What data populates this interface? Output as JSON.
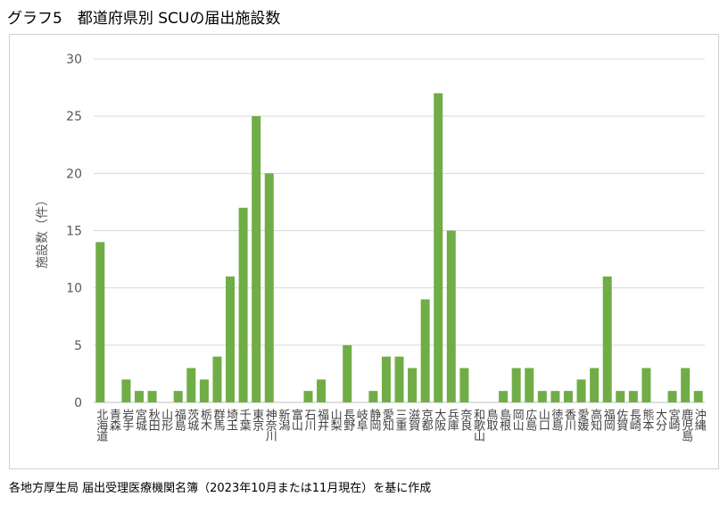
{
  "chart_data": {
    "type": "bar",
    "title": "グラフ5　都道府県別 SCUの届出施設数",
    "xlabel": "",
    "ylabel": "施設数（件）",
    "ylim": [
      0,
      30
    ],
    "yticks": [
      0,
      5,
      10,
      15,
      20,
      25,
      30
    ],
    "grid": true,
    "bar_color": "#70ad47",
    "categories": [
      "北海道",
      "青森",
      "岩手",
      "宮城",
      "秋田",
      "山形",
      "福島",
      "茨城",
      "栃木",
      "群馬",
      "埼玉",
      "千葉",
      "東京",
      "神奈川",
      "新潟",
      "富山",
      "石川",
      "福井",
      "山梨",
      "長野",
      "岐阜",
      "静岡",
      "愛知",
      "三重",
      "滋賀",
      "京都",
      "大阪",
      "兵庫",
      "奈良",
      "和歌山",
      "鳥取",
      "島根",
      "岡山",
      "広島",
      "山口",
      "徳島",
      "香川",
      "愛媛",
      "高知",
      "福岡",
      "佐賀",
      "長崎",
      "熊本",
      "大分",
      "宮崎",
      "鹿児島",
      "沖縄"
    ],
    "values": [
      14,
      0,
      2,
      1,
      1,
      0,
      1,
      3,
      2,
      4,
      11,
      17,
      25,
      20,
      0,
      0,
      1,
      2,
      0,
      5,
      0,
      1,
      4,
      4,
      3,
      9,
      27,
      15,
      3,
      0,
      0,
      1,
      3,
      3,
      1,
      1,
      1,
      2,
      3,
      11,
      1,
      1,
      3,
      0,
      1,
      3,
      1
    ]
  },
  "footer": "各地方厚生局 届出受理医療機関名簿（2023年10月または11月現在）を基に作成"
}
